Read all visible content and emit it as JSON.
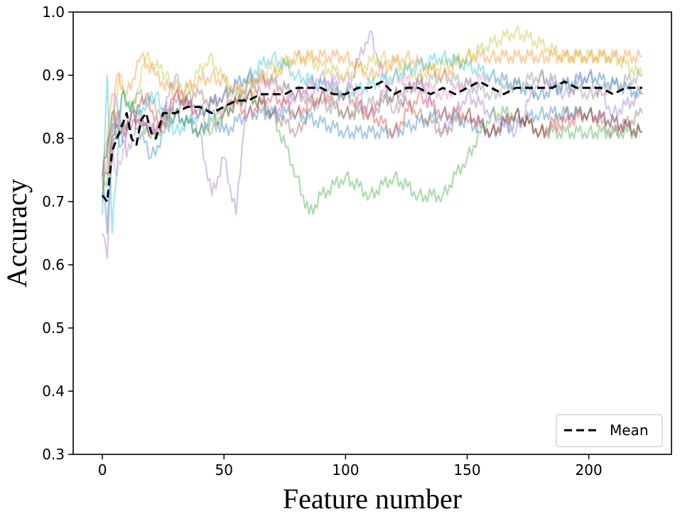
{
  "chart_data": {
    "type": "line",
    "xlabel": "Feature number",
    "ylabel": "Accuracy",
    "xlim": [
      -12,
      234
    ],
    "ylim": [
      0.3,
      1.0
    ],
    "xticks": [
      0,
      50,
      100,
      150,
      200
    ],
    "yticks": [
      0.3,
      0.4,
      0.5,
      0.6,
      0.7,
      0.8,
      0.9,
      1.0
    ],
    "ytick_labels": [
      "0.3",
      "0.4",
      "0.5",
      "0.6",
      "0.7",
      "0.8",
      "0.9",
      "1.0"
    ],
    "grid": false,
    "legend": {
      "location": "lower-right",
      "entries": [
        "Mean"
      ]
    },
    "mean_series": {
      "name": "Mean",
      "color": "#000000",
      "style": "dashed",
      "x": [
        0,
        2,
        4,
        6,
        8,
        10,
        12,
        14,
        16,
        18,
        20,
        22,
        25,
        30,
        35,
        40,
        45,
        50,
        55,
        60,
        65,
        70,
        75,
        80,
        85,
        90,
        95,
        100,
        105,
        110,
        115,
        120,
        125,
        130,
        135,
        140,
        145,
        150,
        155,
        160,
        165,
        170,
        175,
        180,
        185,
        190,
        195,
        200,
        205,
        210,
        215,
        222
      ],
      "y": [
        0.71,
        0.7,
        0.78,
        0.8,
        0.82,
        0.84,
        0.8,
        0.79,
        0.83,
        0.84,
        0.81,
        0.8,
        0.84,
        0.84,
        0.85,
        0.85,
        0.84,
        0.85,
        0.86,
        0.86,
        0.87,
        0.87,
        0.87,
        0.88,
        0.88,
        0.88,
        0.87,
        0.87,
        0.88,
        0.88,
        0.89,
        0.87,
        0.88,
        0.88,
        0.87,
        0.88,
        0.87,
        0.88,
        0.89,
        0.88,
        0.87,
        0.88,
        0.88,
        0.88,
        0.88,
        0.89,
        0.88,
        0.88,
        0.88,
        0.87,
        0.88,
        0.88
      ]
    },
    "runs": [
      {
        "color": "#1f77b4",
        "x": [
          0,
          2,
          4,
          8,
          12,
          20,
          30,
          40,
          45,
          50,
          60,
          80,
          100,
          120,
          140,
          160,
          180,
          200,
          222
        ],
        "y": [
          0.74,
          0.65,
          0.82,
          0.79,
          0.84,
          0.77,
          0.84,
          0.81,
          0.84,
          0.81,
          0.84,
          0.84,
          0.81,
          0.81,
          0.84,
          0.81,
          0.84,
          0.84,
          0.81
        ]
      },
      {
        "color": "#ff7f0e",
        "x": [
          0,
          3,
          6,
          10,
          16,
          22,
          30,
          45,
          60,
          70,
          80,
          100,
          110,
          125,
          140,
          150,
          160,
          180,
          200,
          222
        ],
        "y": [
          0.74,
          0.84,
          0.9,
          0.87,
          0.93,
          0.9,
          0.87,
          0.9,
          0.87,
          0.9,
          0.93,
          0.93,
          0.9,
          0.93,
          0.9,
          0.93,
          0.93,
          0.93,
          0.93,
          0.93
        ]
      },
      {
        "color": "#2ca02c",
        "x": [
          0,
          4,
          8,
          14,
          20,
          30,
          40,
          50,
          60,
          70,
          80,
          85,
          90,
          100,
          110,
          120,
          130,
          140,
          150,
          160,
          170,
          180,
          200,
          222
        ],
        "y": [
          0.71,
          0.77,
          0.87,
          0.84,
          0.8,
          0.84,
          0.81,
          0.84,
          0.87,
          0.84,
          0.74,
          0.68,
          0.71,
          0.74,
          0.71,
          0.74,
          0.71,
          0.71,
          0.77,
          0.84,
          0.84,
          0.81,
          0.81,
          0.81
        ]
      },
      {
        "color": "#d62728",
        "x": [
          0,
          3,
          6,
          10,
          18,
          24,
          30,
          40,
          50,
          60,
          70,
          80,
          90,
          100,
          110,
          120,
          130,
          140,
          150,
          160,
          170,
          180,
          200,
          222
        ],
        "y": [
          0.72,
          0.77,
          0.84,
          0.81,
          0.87,
          0.81,
          0.87,
          0.84,
          0.87,
          0.84,
          0.87,
          0.84,
          0.87,
          0.87,
          0.84,
          0.81,
          0.87,
          0.84,
          0.84,
          0.81,
          0.84,
          0.81,
          0.84,
          0.81
        ]
      },
      {
        "color": "#9467bd",
        "x": [
          0,
          2,
          5,
          10,
          15,
          22,
          30,
          40,
          45,
          50,
          55,
          60,
          70,
          80,
          90,
          100,
          110,
          120,
          130,
          140,
          150,
          160,
          170,
          180,
          190,
          200,
          210,
          222
        ],
        "y": [
          0.65,
          0.61,
          0.87,
          0.77,
          0.84,
          0.8,
          0.9,
          0.81,
          0.71,
          0.77,
          0.68,
          0.9,
          0.84,
          0.87,
          0.9,
          0.87,
          0.97,
          0.84,
          0.9,
          0.81,
          0.87,
          0.84,
          0.81,
          0.9,
          0.87,
          0.9,
          0.84,
          0.87
        ]
      },
      {
        "color": "#8c564b",
        "x": [
          0,
          4,
          8,
          12,
          20,
          28,
          40,
          50,
          60,
          70,
          80,
          90,
          100,
          110,
          120,
          130,
          140,
          150,
          160,
          170,
          180,
          190,
          200,
          210,
          222
        ],
        "y": [
          0.74,
          0.84,
          0.81,
          0.84,
          0.81,
          0.84,
          0.87,
          0.84,
          0.87,
          0.84,
          0.81,
          0.87,
          0.84,
          0.84,
          0.87,
          0.84,
          0.81,
          0.84,
          0.81,
          0.84,
          0.81,
          0.84,
          0.84,
          0.81,
          0.84
        ]
      },
      {
        "color": "#e377c2",
        "x": [
          0,
          3,
          6,
          12,
          20,
          30,
          40,
          50,
          60,
          80,
          100,
          110,
          120,
          140,
          160,
          180,
          200,
          222
        ],
        "y": [
          0.71,
          0.81,
          0.74,
          0.84,
          0.81,
          0.87,
          0.84,
          0.87,
          0.9,
          0.87,
          0.9,
          0.84,
          0.9,
          0.87,
          0.9,
          0.87,
          0.9,
          0.87
        ]
      },
      {
        "color": "#7f7f7f",
        "x": [
          0,
          4,
          8,
          15,
          25,
          35,
          45,
          55,
          65,
          80,
          100,
          120,
          140,
          160,
          180,
          200,
          222
        ],
        "y": [
          0.74,
          0.84,
          0.81,
          0.87,
          0.84,
          0.87,
          0.81,
          0.87,
          0.9,
          0.87,
          0.84,
          0.87,
          0.9,
          0.87,
          0.9,
          0.87,
          0.9
        ]
      },
      {
        "color": "#bcbd22",
        "x": [
          0,
          3,
          7,
          12,
          18,
          26,
          34,
          44,
          54,
          64,
          80,
          100,
          115,
          130,
          150,
          170,
          190,
          210,
          222
        ],
        "y": [
          0.7,
          0.8,
          0.9,
          0.84,
          0.93,
          0.9,
          0.87,
          0.93,
          0.87,
          0.9,
          0.93,
          0.9,
          0.93,
          0.9,
          0.93,
          0.97,
          0.93,
          0.93,
          0.9
        ]
      },
      {
        "color": "#17becf",
        "x": [
          0,
          2,
          4,
          8,
          14,
          22,
          30,
          40,
          50,
          60,
          70,
          80,
          100,
          120,
          140,
          160,
          180,
          200,
          222
        ],
        "y": [
          0.68,
          0.9,
          0.65,
          0.87,
          0.84,
          0.87,
          0.81,
          0.84,
          0.87,
          0.9,
          0.93,
          0.9,
          0.87,
          0.9,
          0.93,
          0.9,
          0.87,
          0.9,
          0.87
        ]
      }
    ]
  }
}
